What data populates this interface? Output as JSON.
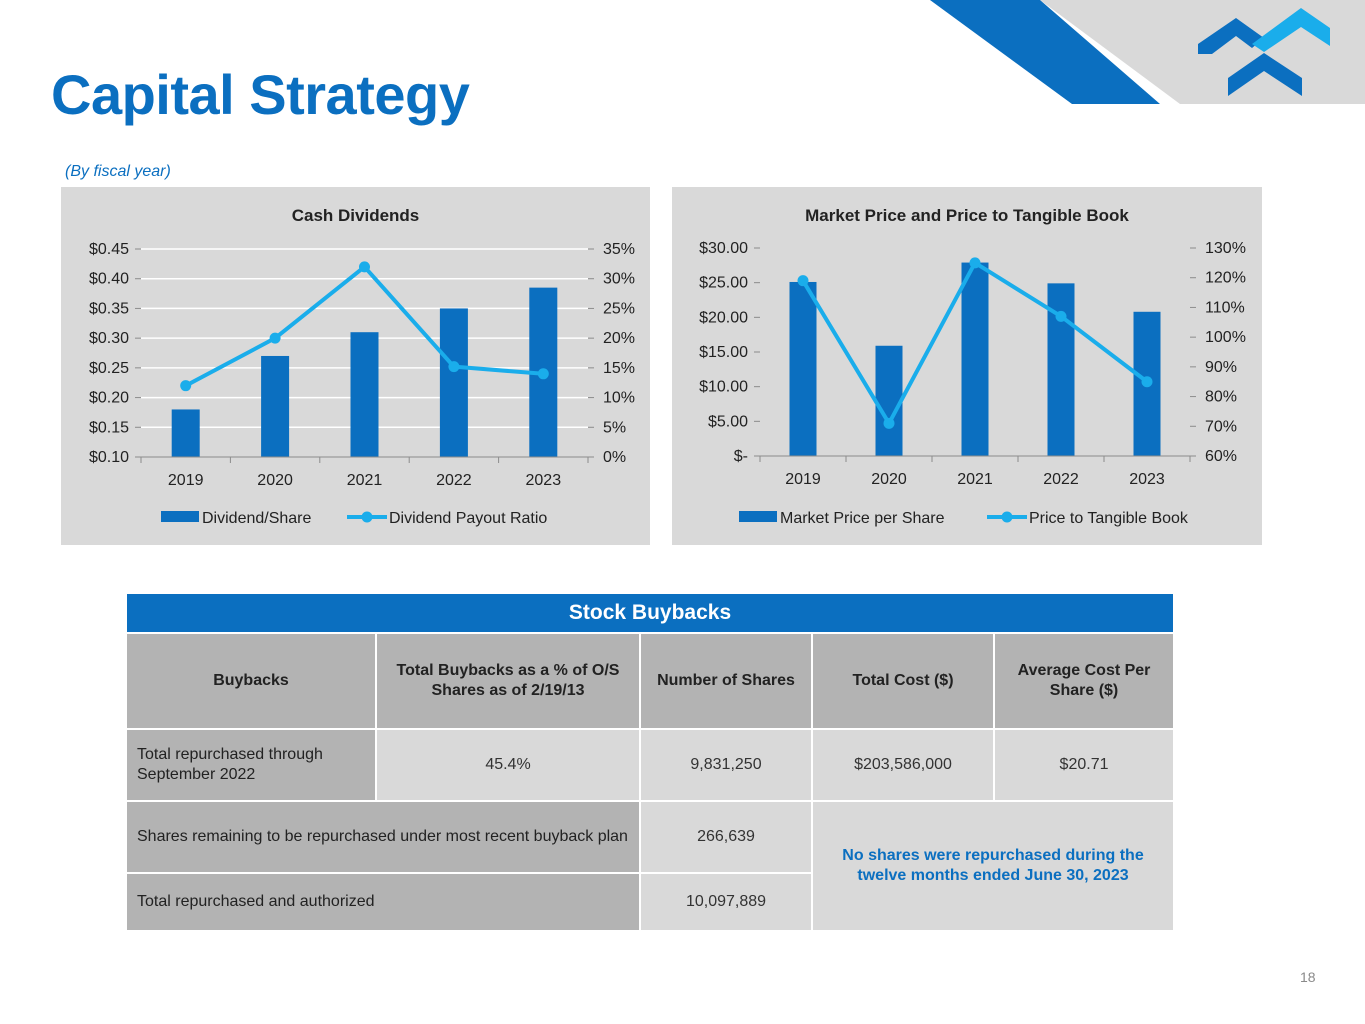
{
  "header": {
    "title": "Capital Strategy",
    "subtitle": "(By fiscal year)"
  },
  "colors": {
    "brand_blue": "#0B6FC0",
    "accent_cyan": "#1AADEB",
    "panel_gray": "#D9D9D9",
    "header_gray": "#B3B3B3"
  },
  "chart_data": [
    {
      "type": "bar",
      "title": "Cash Dividends",
      "categories": [
        "2019",
        "2020",
        "2021",
        "2022",
        "2023"
      ],
      "series": [
        {
          "name": "Dividend/Share",
          "kind": "bar",
          "axis": "left",
          "values": [
            0.18,
            0.27,
            0.31,
            0.35,
            0.385
          ]
        },
        {
          "name": "Dividend Payout Ratio",
          "kind": "line",
          "axis": "right",
          "values": [
            12,
            20,
            32,
            15.2,
            14
          ]
        }
      ],
      "left_axis": {
        "min": 0.1,
        "max": 0.45,
        "ticks": [
          "$0.10",
          "$0.15",
          "$0.20",
          "$0.25",
          "$0.30",
          "$0.35",
          "$0.40",
          "$0.45"
        ]
      },
      "right_axis": {
        "min": 0,
        "max": 35,
        "ticks": [
          "0%",
          "5%",
          "10%",
          "15%",
          "20%",
          "25%",
          "30%",
          "35%"
        ]
      },
      "xlabel": "",
      "ylabel": "",
      "grid": true,
      "legend": "bottom"
    },
    {
      "type": "bar",
      "title": "Market Price and Price to Tangible Book",
      "categories": [
        "2019",
        "2020",
        "2021",
        "2022",
        "2023"
      ],
      "series": [
        {
          "name": "Market Price per Share",
          "kind": "bar",
          "axis": "left",
          "values": [
            25.1,
            15.9,
            27.9,
            24.9,
            20.8
          ]
        },
        {
          "name": "Price to Tangible Book",
          "kind": "line",
          "axis": "right",
          "values": [
            119,
            71,
            125,
            107,
            85
          ]
        }
      ],
      "left_axis": {
        "min": 0,
        "max": 30,
        "ticks": [
          "$-",
          "$5.00",
          "$10.00",
          "$15.00",
          "$20.00",
          "$25.00",
          "$30.00"
        ]
      },
      "right_axis": {
        "min": 60,
        "max": 130,
        "ticks": [
          "60%",
          "70%",
          "80%",
          "90%",
          "100%",
          "110%",
          "120%",
          "130%"
        ]
      },
      "xlabel": "",
      "ylabel": "",
      "grid": false,
      "legend": "bottom"
    }
  ],
  "buybacks": {
    "title": "Stock Buybacks",
    "headers": [
      "Buybacks",
      "Total Buybacks as a % of O/S Shares as of 2/19/13",
      "Number of Shares",
      "Total Cost ($)",
      "Average Cost Per Share ($)"
    ],
    "row1": {
      "label": "Total repurchased through September 2022",
      "pct": "45.4%",
      "shares": "9,831,250",
      "cost": "$203,586,000",
      "avg": "$20.71"
    },
    "row2": {
      "label": "Shares remaining to be repurchased under most recent buyback plan",
      "shares": "266,639"
    },
    "row3": {
      "label": "Total repurchased and authorized",
      "shares": "10,097,889"
    },
    "note": "No shares were repurchased during the twelve months ended June 30, 2023"
  },
  "footer": {
    "page_number": "18"
  }
}
